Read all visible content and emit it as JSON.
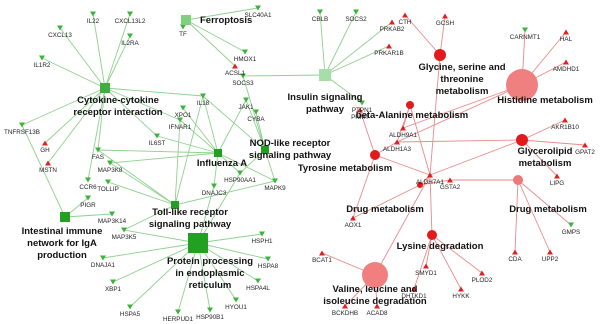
{
  "pathways": [
    {
      "label": [
        "Ferroptosis"
      ]
    },
    {
      "label": [
        "Cytokine-cytokine",
        "receptor interaction"
      ]
    },
    {
      "label": [
        "Insulin signaling",
        "pathway"
      ]
    },
    {
      "label": [
        "NOD-like receptor",
        "signaling pathway"
      ]
    },
    {
      "label": [
        "Influenza A"
      ]
    },
    {
      "label": [
        "Toll-like receptor",
        "signaling pathway"
      ]
    },
    {
      "label": [
        "Intestinal immune",
        "network for IgA",
        "production"
      ]
    },
    {
      "label": [
        "Protein processing",
        "in endoplasmic",
        "reticulum"
      ]
    },
    {
      "label": [
        "Glycine, serine and",
        "threonine",
        "metabolism"
      ]
    },
    {
      "label": [
        "Histidine metabolism"
      ]
    },
    {
      "label": [
        "beta-Alanine metabolism"
      ]
    },
    {
      "label": [
        "Tyrosine metabolism"
      ]
    },
    {
      "label": [
        "Glycerolipid",
        "metabolism"
      ]
    },
    {
      "label": [
        "Drug metabolism"
      ]
    },
    {
      "label": [
        "Drug metabolism"
      ]
    },
    {
      "label": [
        "Lysine degradation"
      ]
    },
    {
      "label": [
        "Valine, leucine and",
        "isoleucine degradation"
      ]
    }
  ],
  "genes": [
    "IL22",
    "CXCL13L2",
    "CXCL13",
    "IL2RA",
    "IL1R2",
    "TNFRSF13B",
    "GH",
    "MSTN",
    "CCR6",
    "TF",
    "SLC40A1",
    "HMOX1",
    "ACSL1",
    "SOCS3",
    "IL18",
    "XPO1",
    "IFNAR1",
    "IL6ST",
    "JAK1",
    "CYBA",
    "FAS",
    "MAP3K8",
    "TOLLIP",
    "DNAJC3",
    "HSP90AA1",
    "MAPK9",
    "PIGR",
    "MAP3K14",
    "MAP3K5",
    "DNAJA1",
    "XBP1",
    "HSPA5",
    "HERPUD1",
    "HSP90B1",
    "HYOU1",
    "HSPA4L",
    "HSPA8",
    "HSPH1",
    "CBLB",
    "SOCS2",
    "PRKAB2",
    "PRKAR1B",
    "PTPN1",
    "CTH",
    "GCSH",
    "CARNMT1",
    "HAL",
    "AMDHD1",
    "PNMT",
    "ALDH9A1",
    "ALDH1A3",
    "ALDH7A1",
    "AKR1B10",
    "GPAT2",
    "LIPG",
    "GSTA2",
    "AOX1",
    "GMPS",
    "CDA",
    "UPP2",
    "SMYD1",
    "DHTKD1",
    "HYKK",
    "PLOD2",
    "BCAT1",
    "BCKDHB",
    "ACAD8"
  ]
}
